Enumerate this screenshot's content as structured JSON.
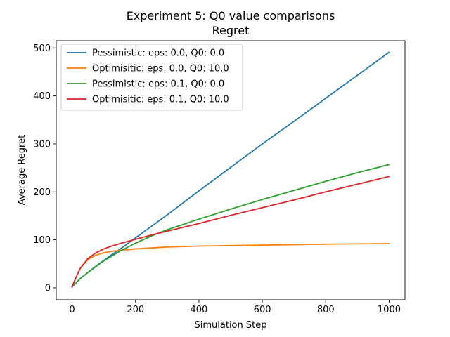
{
  "chart_data": {
    "type": "line",
    "title": "Experiment 5: Q0 value comparisons",
    "subtitle": "Regret",
    "xlabel": "Simulation Step",
    "ylabel": "Average Regret",
    "xlim": [
      -50,
      1050
    ],
    "ylim": [
      -25,
      515
    ],
    "xticks": [
      0,
      200,
      400,
      600,
      800,
      1000
    ],
    "yticks": [
      0,
      100,
      200,
      300,
      400,
      500
    ],
    "xtick_labels": [
      "0",
      "200",
      "400",
      "600",
      "800",
      "1000"
    ],
    "ytick_labels": [
      "0",
      "100",
      "200",
      "300",
      "400",
      "500"
    ],
    "legend_position": "upper-left",
    "grid": false,
    "x": [
      0,
      10,
      25,
      50,
      75,
      100,
      125,
      150,
      200,
      250,
      300,
      400,
      500,
      600,
      700,
      800,
      900,
      1000
    ],
    "series": [
      {
        "name": "Pessimistic: eps: 0.0, Q0: 0.0",
        "color": "#1f77b4",
        "values": [
          2,
          9,
          19,
          32,
          45,
          57,
          69,
          80,
          104,
          128,
          152,
          202,
          251,
          300,
          347,
          395,
          443,
          491
        ]
      },
      {
        "name": "Optimisitic: eps: 0.0, Q0: 10.0",
        "color": "#ff7f0e",
        "values": [
          2,
          18,
          40,
          59,
          68,
          73,
          76,
          78,
          81,
          83,
          85,
          87,
          88,
          89,
          90,
          91,
          91.5,
          92
        ]
      },
      {
        "name": "Pessimistic: eps: 0.1, Q0: 0.0",
        "color": "#2ca02c",
        "values": [
          2,
          9,
          19,
          32,
          44,
          56,
          66,
          76,
          93,
          108,
          121,
          143,
          164,
          184,
          203,
          222,
          240,
          257
        ]
      },
      {
        "name": "Optimisitic: eps: 0.1, Q0: 10.0",
        "color": "#d62728",
        "values": [
          2,
          18,
          40,
          61,
          73,
          81,
          87,
          92,
          101,
          110,
          118,
          134,
          151,
          167,
          183,
          200,
          216,
          232
        ]
      }
    ]
  }
}
